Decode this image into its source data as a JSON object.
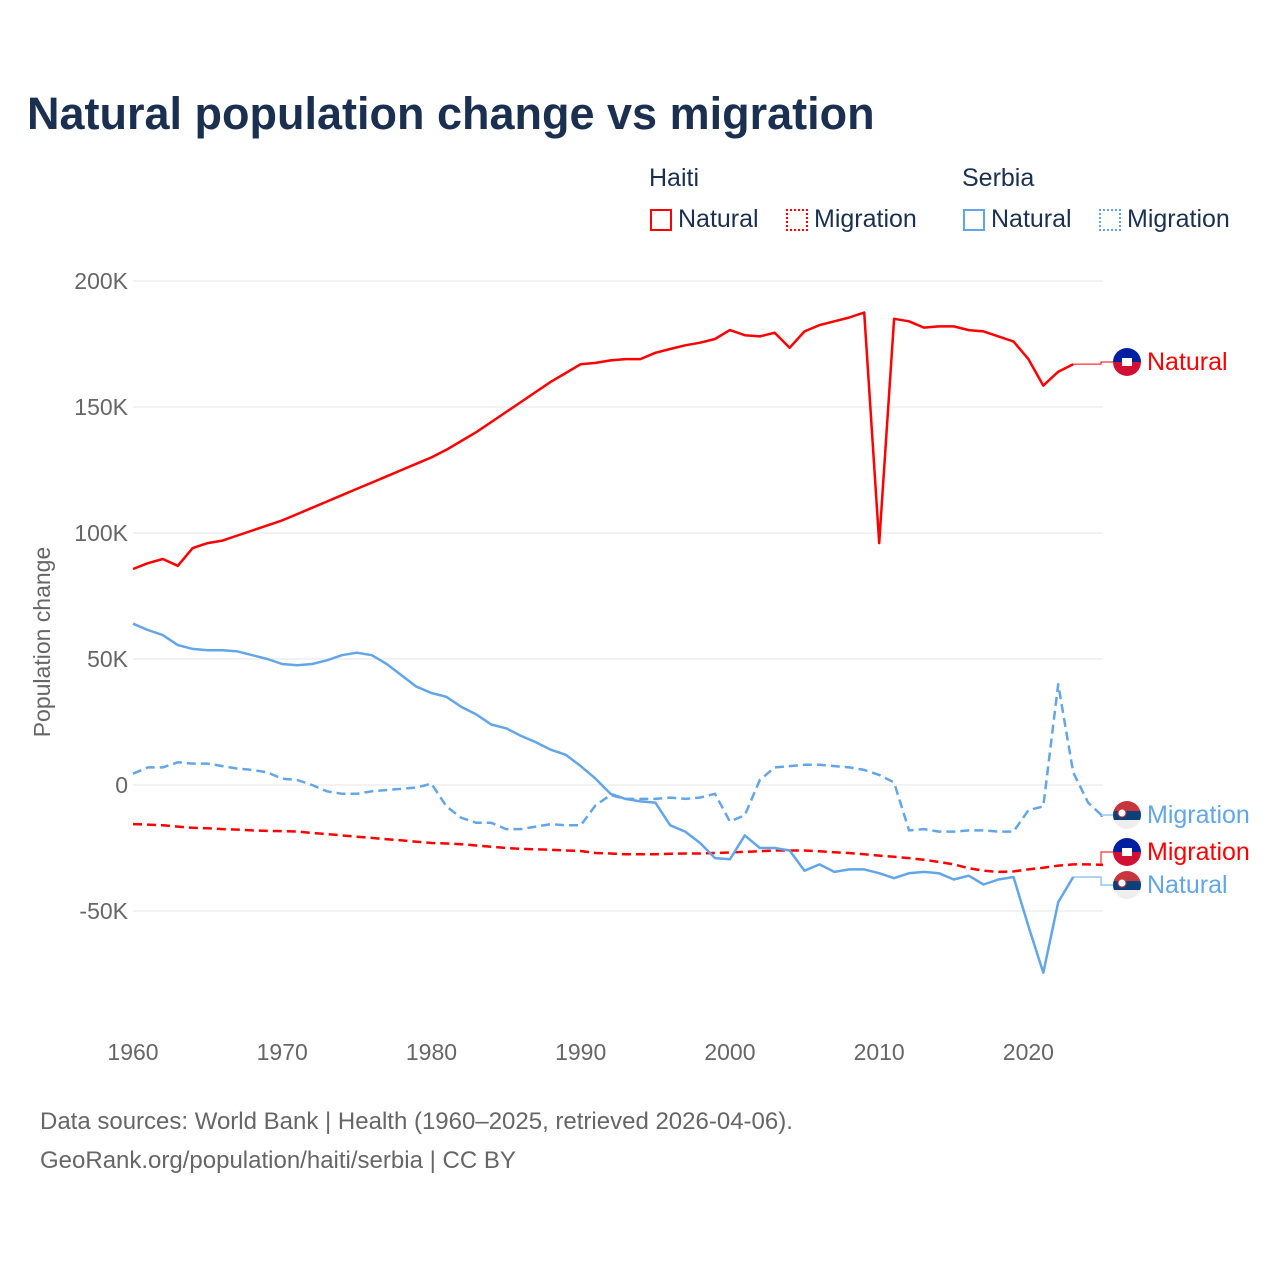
{
  "chart_data": {
    "type": "line",
    "title": "Natural population change vs migration",
    "ylabel": "Population change",
    "xlabel": "",
    "xlim": [
      1960,
      2025
    ],
    "ylim": [
      -90000,
      200000
    ],
    "x_ticks": [
      1960,
      1970,
      1980,
      1990,
      2000,
      2010,
      2020
    ],
    "x_tick_labels": [
      "1960",
      "1970",
      "1980",
      "1990",
      "2000",
      "2010",
      "2020"
    ],
    "y_ticks": [
      -50000,
      0,
      50000,
      100000,
      150000,
      200000
    ],
    "y_tick_labels": [
      "-50K",
      "0",
      "50K",
      "100K",
      "150K",
      "200K"
    ],
    "grid": true,
    "legend": {
      "placement": "top-right",
      "groups": [
        {
          "name": "Haiti",
          "items": [
            "Natural",
            "Migration"
          ]
        },
        {
          "name": "Serbia",
          "items": [
            "Natural",
            "Migration"
          ]
        }
      ]
    },
    "series": [
      {
        "name": "Haiti Natural",
        "country": "Haiti",
        "label": "Natural",
        "color": "#ff0000",
        "dash": false,
        "start": 1960,
        "values": [
          85700,
          88000,
          89700,
          87000,
          94000,
          96000,
          97000,
          99000,
          101000,
          103000,
          105000,
          107500,
          110000,
          112500,
          115000,
          117500,
          120000,
          122500,
          125000,
          127500,
          130000,
          133000,
          136500,
          140000,
          144000,
          148000,
          152000,
          156000,
          160000,
          163500,
          167000,
          167500,
          168500,
          169000,
          169000,
          171500,
          173000,
          174500,
          175500,
          177000,
          180500,
          178500,
          178000,
          179500,
          173500,
          180000,
          182500,
          184000,
          185500,
          187500,
          96000,
          185000,
          184000,
          181500,
          182000,
          182000,
          180500,
          180000,
          178000,
          176000,
          169000,
          158500,
          164000,
          167000
        ]
      },
      {
        "name": "Haiti Migration",
        "country": "Haiti",
        "label": "Migration",
        "color": "#ff0000",
        "dash": true,
        "start": 1960,
        "values": [
          -15500,
          -15700,
          -16000,
          -16500,
          -17000,
          -17200,
          -17500,
          -17700,
          -18000,
          -18200,
          -18300,
          -18500,
          -19000,
          -19500,
          -20000,
          -20500,
          -21000,
          -21500,
          -22000,
          -22500,
          -23000,
          -23200,
          -23500,
          -24000,
          -24500,
          -25000,
          -25300,
          -25500,
          -25700,
          -26000,
          -26200,
          -27000,
          -27200,
          -27500,
          -27500,
          -27500,
          -27300,
          -27200,
          -27200,
          -27000,
          -26800,
          -26500,
          -26300,
          -26000,
          -26000,
          -26000,
          -26300,
          -26700,
          -27000,
          -27500,
          -28000,
          -28500,
          -29000,
          -29700,
          -30500,
          -31500,
          -33000,
          -34000,
          -34500,
          -34300,
          -33500,
          -32800,
          -32000,
          -31500,
          -31500,
          -31700
        ]
      },
      {
        "name": "Serbia Natural",
        "country": "Serbia",
        "label": "Natural",
        "color": "#62a6e8",
        "dash": false,
        "start": 1960,
        "values": [
          64000,
          61500,
          59500,
          55500,
          54000,
          53500,
          53500,
          53000,
          51500,
          50000,
          48000,
          47500,
          48000,
          49500,
          51500,
          52500,
          51500,
          48000,
          43500,
          39000,
          36500,
          35000,
          31000,
          28000,
          24000,
          22500,
          19500,
          17000,
          14000,
          12000,
          7500,
          2500,
          -3500,
          -5500,
          -6500,
          -7000,
          -16000,
          -18500,
          -23000,
          -29000,
          -29500,
          -20000,
          -25000,
          -25000,
          -26000,
          -34000,
          -31500,
          -34500,
          -33500,
          -33500,
          -35000,
          -37000,
          -35000,
          -34500,
          -35000,
          -37500,
          -36000,
          -39500,
          -37500,
          -36500,
          -56000,
          -74500,
          -46500,
          -36500
        ]
      },
      {
        "name": "Serbia Migration",
        "country": "Serbia",
        "label": "Migration",
        "color": "#62a6e8",
        "dash": true,
        "start": 1960,
        "values": [
          4500,
          7000,
          7000,
          9000,
          8500,
          8500,
          7500,
          6500,
          6000,
          5000,
          2500,
          2000,
          0,
          -2500,
          -3500,
          -3500,
          -2500,
          -2000,
          -1500,
          -1000,
          500,
          -8500,
          -13000,
          -15000,
          -15000,
          -17500,
          -17500,
          -16500,
          -15500,
          -16000,
          -16000,
          -8000,
          -4000,
          -5500,
          -5500,
          -5500,
          -5000,
          -5500,
          -5000,
          -3500,
          -14500,
          -12000,
          2000,
          7000,
          7500,
          8000,
          8000,
          7500,
          7000,
          6000,
          4000,
          1000,
          -18000,
          -17500,
          -18500,
          -18500,
          -18000,
          -18000,
          -18500,
          -18500,
          -10000,
          -8500,
          40000,
          5000,
          -7000,
          -12500
        ]
      }
    ],
    "end_labels": [
      {
        "text": "Natural",
        "series": 0,
        "flag": "haiti"
      },
      {
        "text": "Migration",
        "series": 3,
        "flag": "serbia"
      },
      {
        "text": "Migration",
        "series": 1,
        "flag": "haiti"
      },
      {
        "text": "Natural",
        "series": 2,
        "flag": "serbia"
      }
    ]
  },
  "legend": {
    "haiti": "Haiti",
    "serbia": "Serbia",
    "natural": "Natural",
    "migration": "Migration"
  },
  "footer": {
    "line1": "Data sources: World Bank | Health (1960–2025, retrieved 2026-04-06).",
    "line2": "GeoRank.org/population/haiti/serbia | CC BY"
  }
}
